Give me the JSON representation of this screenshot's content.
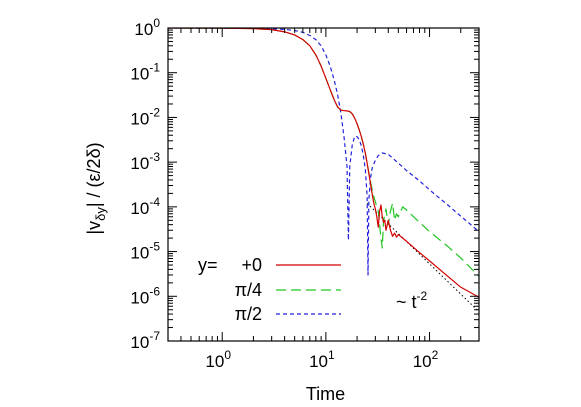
{
  "chart_data": {
    "type": "line",
    "title": "",
    "xlabel": "Time",
    "ylabel_parts": {
      "pre": "|v",
      "sub": "δy",
      "post": "| / (ε/2δ)"
    },
    "xscale": "log",
    "yscale": "log",
    "xlim": [
      0.3,
      300
    ],
    "ylim": [
      1e-07,
      1
    ],
    "grid": false,
    "legend_position": "bottom-left",
    "x_ticks": [
      {
        "value": 1,
        "base": "10",
        "exp": "0"
      },
      {
        "value": 10,
        "base": "10",
        "exp": "1"
      },
      {
        "value": 100,
        "base": "10",
        "exp": "2"
      }
    ],
    "y_ticks": [
      {
        "value": 1,
        "base": "10",
        "exp": "0"
      },
      {
        "value": 0.1,
        "base": "10",
        "exp": "-1"
      },
      {
        "value": 0.01,
        "base": "10",
        "exp": "-2"
      },
      {
        "value": 0.001,
        "base": "10",
        "exp": "-3"
      },
      {
        "value": 0.0001,
        "base": "10",
        "exp": "-4"
      },
      {
        "value": 1e-05,
        "base": "10",
        "exp": "-5"
      },
      {
        "value": 1e-06,
        "base": "10",
        "exp": "-6"
      },
      {
        "value": 1e-07,
        "base": "10",
        "exp": "-7"
      }
    ],
    "legend_prefix": "y=",
    "series": [
      {
        "name": "+0",
        "color": "#d40000",
        "dash": "solid",
        "points": [
          [
            0.3,
            1
          ],
          [
            1,
            0.99
          ],
          [
            2,
            0.97
          ],
          [
            3,
            0.92
          ],
          [
            4,
            0.82
          ],
          [
            5,
            0.7
          ],
          [
            6,
            0.55
          ],
          [
            7,
            0.4
          ],
          [
            8,
            0.25
          ],
          [
            9,
            0.14
          ],
          [
            10,
            0.075
          ],
          [
            11,
            0.042
          ],
          [
            12,
            0.025
          ],
          [
            13,
            0.017
          ],
          [
            14,
            0.0145
          ],
          [
            15,
            0.0142
          ],
          [
            16,
            0.014
          ],
          [
            17,
            0.0135
          ],
          [
            18,
            0.012
          ],
          [
            19,
            0.0095
          ],
          [
            20,
            0.0072
          ],
          [
            21,
            0.0052
          ],
          [
            22,
            0.0037
          ],
          [
            23,
            0.0025
          ],
          [
            24,
            0.0016
          ],
          [
            25,
            0.00095
          ],
          [
            26,
            0.00055
          ],
          [
            27,
            0.00032
          ],
          [
            28,
            0.00019
          ],
          [
            29,
            0.00012
          ],
          [
            30,
            9e-05
          ],
          [
            31,
            6e-05
          ],
          [
            32,
            3.5e-05
          ],
          [
            33,
            8e-05
          ],
          [
            34,
            0.00011
          ],
          [
            35,
            6e-05
          ],
          [
            36,
            4.5e-05
          ],
          [
            37,
            5e-05
          ],
          [
            38,
            3e-05
          ],
          [
            40,
            5e-05
          ],
          [
            42,
            3e-05
          ],
          [
            44,
            2.2e-05
          ],
          [
            46,
            2.6e-05
          ],
          [
            48,
            2.1e-05
          ],
          [
            50,
            2.4e-05
          ],
          [
            60,
            1.7e-05
          ],
          [
            80,
            9.5e-06
          ],
          [
            100,
            6.2e-06
          ],
          [
            150,
            2.8e-06
          ],
          [
            200,
            1.6e-06
          ],
          [
            300,
            9.5e-07
          ]
        ]
      },
      {
        "name": "π/4",
        "color": "#22c422",
        "dash": "10,5",
        "points": [
          [
            0.3,
            1
          ],
          [
            1,
            0.99
          ],
          [
            2,
            0.97
          ],
          [
            3,
            0.92
          ],
          [
            4,
            0.82
          ],
          [
            5,
            0.7
          ],
          [
            6,
            0.55
          ],
          [
            7,
            0.4
          ],
          [
            8,
            0.25
          ],
          [
            9,
            0.14
          ],
          [
            10,
            0.075
          ],
          [
            11,
            0.042
          ],
          [
            12,
            0.025
          ],
          [
            13,
            0.017
          ],
          [
            14,
            0.0145
          ],
          [
            15,
            0.0142
          ],
          [
            16,
            0.014
          ],
          [
            17,
            0.0135
          ],
          [
            18,
            0.012
          ],
          [
            19,
            0.0095
          ],
          [
            20,
            0.0072
          ],
          [
            21,
            0.0052
          ],
          [
            22,
            0.0037
          ],
          [
            23,
            0.0025
          ],
          [
            24,
            0.0016
          ],
          [
            25,
            0.00095
          ],
          [
            26,
            0.00058
          ],
          [
            27,
            0.00036
          ],
          [
            28,
            0.00024
          ],
          [
            29,
            0.00017
          ],
          [
            30,
            0.00013
          ],
          [
            32,
            8e-05
          ],
          [
            34,
            2e-05
          ],
          [
            35,
            1.2e-05
          ],
          [
            36,
            5e-05
          ],
          [
            38,
            9e-05
          ],
          [
            40,
            4e-05
          ],
          [
            42,
            8e-05
          ],
          [
            44,
            0.00012
          ],
          [
            46,
            5e-05
          ],
          [
            48,
            7e-05
          ],
          [
            50,
            6e-05
          ],
          [
            55,
            0.0001
          ],
          [
            60,
            8.5e-05
          ],
          [
            80,
            4.5e-05
          ],
          [
            100,
            2.8e-05
          ],
          [
            150,
            1.3e-05
          ],
          [
            200,
            7.2e-06
          ],
          [
            300,
            2.8e-06
          ]
        ]
      },
      {
        "name": "π/2",
        "color": "#2222dd",
        "dash": "4,3",
        "points": [
          [
            0.3,
            1
          ],
          [
            1,
            0.99
          ],
          [
            2,
            0.98
          ],
          [
            3,
            0.96
          ],
          [
            4,
            0.93
          ],
          [
            5,
            0.88
          ],
          [
            6,
            0.8
          ],
          [
            7,
            0.68
          ],
          [
            8,
            0.55
          ],
          [
            9,
            0.4
          ],
          [
            10,
            0.25
          ],
          [
            11,
            0.14
          ],
          [
            12,
            0.07
          ],
          [
            13,
            0.032
          ],
          [
            14,
            0.012
          ],
          [
            15,
            0.0035
          ],
          [
            16,
            0.0008
          ],
          [
            16.5,
            1.8e-05
          ],
          [
            17,
            0.0008
          ],
          [
            18,
            0.0025
          ],
          [
            19,
            0.0038
          ],
          [
            20,
            0.0037
          ],
          [
            21,
            0.0032
          ],
          [
            22,
            0.0023
          ],
          [
            23,
            0.0014
          ],
          [
            24,
            0.0007
          ],
          [
            25,
            0.00018
          ],
          [
            25.5,
            3e-06
          ],
          [
            26,
            0.00015
          ],
          [
            27,
            0.00045
          ],
          [
            28,
            0.00075
          ],
          [
            30,
            0.0011
          ],
          [
            32,
            0.0014
          ],
          [
            35,
            0.0016
          ],
          [
            40,
            0.0015
          ],
          [
            50,
            0.00095
          ],
          [
            60,
            0.00065
          ],
          [
            80,
            0.00038
          ],
          [
            100,
            0.00024
          ],
          [
            150,
            0.00011
          ],
          [
            200,
            6.2e-05
          ],
          [
            300,
            2.8e-05
          ]
        ]
      }
    ],
    "reference_line": {
      "label_pre": "~ t",
      "label_exp": "-2",
      "color": "#000000",
      "points": [
        [
          25,
          0.00012
        ],
        [
          300,
          4.5e-07
        ]
      ]
    }
  }
}
